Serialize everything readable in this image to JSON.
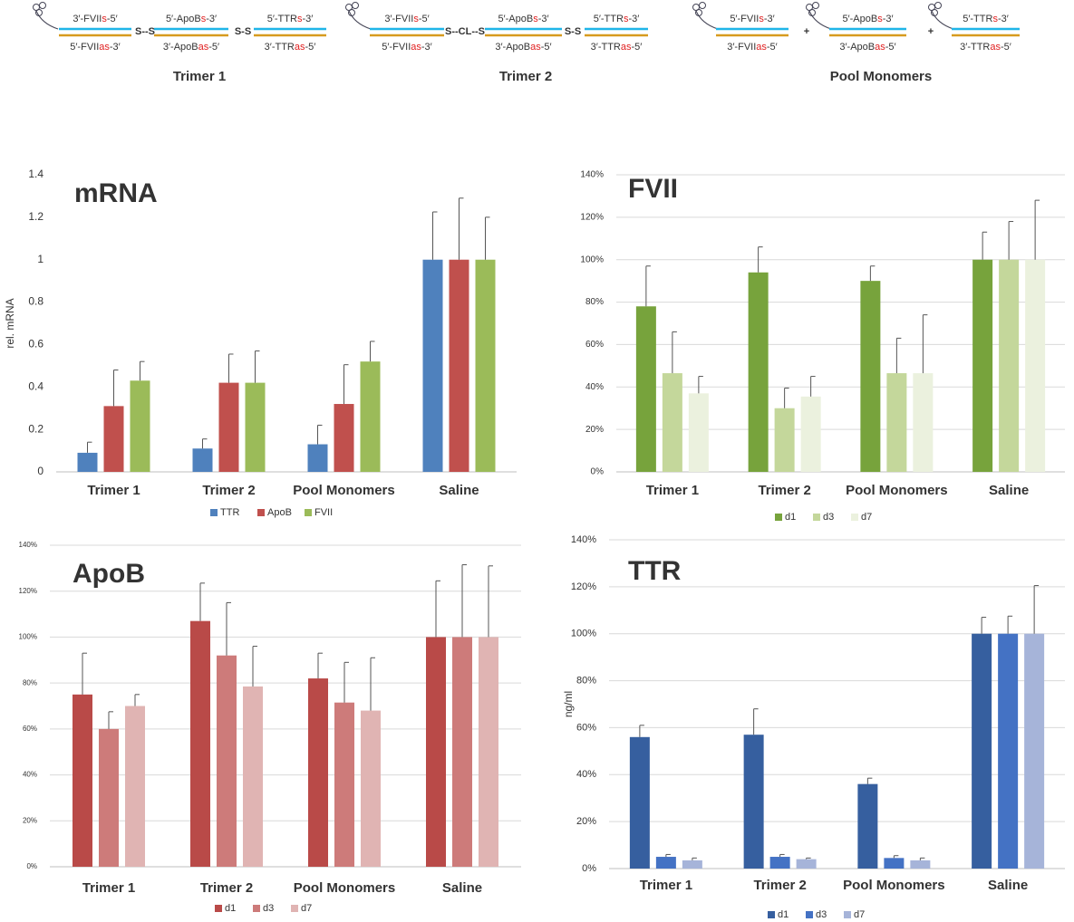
{
  "schematic": [
    {
      "caption": "Trimer 1",
      "strands": [
        {
          "top": {
            "pre": "3′-FVII",
            "mod": "s",
            "post": "-5′"
          },
          "bottom": {
            "pre": "5′-FVII",
            "mod": "as",
            "post": "-3′"
          }
        },
        {
          "top": {
            "pre": "5′-ApoB",
            "mod": "s",
            "post": "-3′"
          },
          "bottom": {
            "pre": "3′-ApoB",
            "mod": "as",
            "post": "-5′"
          }
        },
        {
          "top": {
            "pre": "5′-TTR",
            "mod": "s",
            "post": "-3′"
          },
          "bottom": {
            "pre": "3′-TTR",
            "mod": "as",
            "post": "-5′"
          }
        }
      ],
      "linkers": [
        "S--S",
        "S-S"
      ]
    },
    {
      "caption": "Trimer 2",
      "strands": [
        {
          "top": {
            "pre": "3′-FVII",
            "mod": "s",
            "post": "-5′"
          },
          "bottom": {
            "pre": "5′-FVII",
            "mod": "as",
            "post": "-3′"
          }
        },
        {
          "top": {
            "pre": "5′-ApoB",
            "mod": "s",
            "post": "-3′"
          },
          "bottom": {
            "pre": "3′-ApoB",
            "mod": "as",
            "post": "-5′"
          }
        },
        {
          "top": {
            "pre": "5′-TTR",
            "mod": "s",
            "post": "-3′"
          },
          "bottom": {
            "pre": "3′-TTR",
            "mod": "as",
            "post": "-5′"
          }
        }
      ],
      "linkers": [
        "S--CL--S",
        "S-S"
      ]
    },
    {
      "caption": "Pool Monomers",
      "strands": [
        {
          "top": {
            "pre": "5′-FVII",
            "mod": "s",
            "post": "-3′"
          },
          "bottom": {
            "pre": "3′-FVII",
            "mod": "as",
            "post": "-5′"
          }
        },
        {
          "top": {
            "pre": "5′-ApoB",
            "mod": "s",
            "post": "-3′"
          },
          "bottom": {
            "pre": "3′-ApoB",
            "mod": "as",
            "post": "-5′"
          }
        },
        {
          "top": {
            "pre": "5′-TTR",
            "mod": "s",
            "post": "-3′"
          },
          "bottom": {
            "pre": "3′-TTR",
            "mod": "as",
            "post": "-5′"
          }
        }
      ],
      "linkers": [
        "+",
        "+"
      ]
    }
  ],
  "chart_data": [
    {
      "type": "bar",
      "title": "mRNA",
      "ylabel": "rel. mRNA",
      "categories": [
        "Trimer 1",
        "Trimer 2",
        "Pool Monomers",
        "Saline"
      ],
      "series": [
        {
          "name": "TTR",
          "color": "#4f81bd",
          "values": [
            0.09,
            0.11,
            0.13,
            1
          ],
          "errors": [
            0.05,
            0.045,
            0.09,
            0.225
          ]
        },
        {
          "name": "ApoB",
          "color": "#c0504d",
          "values": [
            0.31,
            0.42,
            0.32,
            1
          ],
          "errors": [
            0.17,
            0.135,
            0.185,
            0.29
          ]
        },
        {
          "name": "FVII",
          "color": "#9bbb59",
          "values": [
            0.43,
            0.42,
            0.52,
            1
          ],
          "errors": [
            0.09,
            0.15,
            0.095,
            0.2
          ]
        }
      ],
      "ylim": [
        0,
        1.4
      ],
      "yticks": [
        0,
        0.2,
        0.4,
        0.6,
        0.8,
        1,
        1.2,
        1.4
      ],
      "grid": false,
      "legend": "bottom"
    },
    {
      "type": "bar",
      "title": "FVII",
      "categories": [
        "Trimer 1",
        "Trimer 2",
        "Pool Monomers",
        "Saline"
      ],
      "series": [
        {
          "name": "d1",
          "color": "#77a33c",
          "values": [
            78,
            94,
            90,
            100
          ],
          "errors": [
            19,
            12,
            7,
            13
          ]
        },
        {
          "name": "d3",
          "color": "#c4d79b",
          "values": [
            46.5,
            30,
            46.5,
            100
          ],
          "errors": [
            19.5,
            9.5,
            16.5,
            18
          ]
        },
        {
          "name": "d7",
          "color": "#ebf1de",
          "values": [
            37,
            35.5,
            46.5,
            100
          ],
          "errors": [
            8,
            9.5,
            27.5,
            28
          ]
        }
      ],
      "ylim": [
        0,
        140
      ],
      "yticks": [
        {
          "value": 0,
          "label": "0%"
        },
        {
          "value": 20,
          "label": "20%"
        },
        {
          "value": 40,
          "label": "40%"
        },
        {
          "value": 60,
          "label": "60%"
        },
        {
          "value": 80,
          "label": "80%"
        },
        {
          "value": 100,
          "label": "100%"
        },
        {
          "value": 120,
          "label": "120%"
        },
        {
          "value": 140,
          "label": "140%"
        }
      ],
      "grid": true,
      "legend": "bottom"
    },
    {
      "type": "bar",
      "title": "ApoB",
      "categories": [
        "Trimer 1",
        "Trimer 2",
        "Pool Monomers",
        "Saline"
      ],
      "series": [
        {
          "name": "d1",
          "color": "#b94a48",
          "values": [
            75,
            107,
            82,
            100
          ],
          "errors": [
            18,
            16.5,
            11,
            24.5
          ]
        },
        {
          "name": "d3",
          "color": "#cd7b7a",
          "values": [
            60,
            92,
            71.5,
            100
          ],
          "errors": [
            7.5,
            23,
            17.5,
            31.5
          ]
        },
        {
          "name": "d7",
          "color": "#e0b4b3",
          "values": [
            70,
            78.5,
            68,
            100
          ],
          "errors": [
            5,
            17.5,
            23,
            31
          ]
        }
      ],
      "ylim": [
        0,
        140
      ],
      "yticks": [
        {
          "value": 0,
          "label": "0%"
        },
        {
          "value": 20,
          "label": "20%"
        },
        {
          "value": 40,
          "label": "40%"
        },
        {
          "value": 60,
          "label": "60%"
        },
        {
          "value": 80,
          "label": "80%"
        },
        {
          "value": 100,
          "label": "100%"
        },
        {
          "value": 120,
          "label": "120%"
        },
        {
          "value": 140,
          "label": "140%"
        }
      ],
      "grid": true,
      "legend": "bottom"
    },
    {
      "type": "bar",
      "title": "TTR",
      "ylabel": "ng/ml",
      "categories": [
        "Trimer 1",
        "Trimer 2",
        "Pool Monomers",
        "Saline"
      ],
      "series": [
        {
          "name": "d1",
          "color": "#365f9f",
          "values": [
            56,
            57,
            36,
            100
          ],
          "errors": [
            5,
            11,
            2.5,
            7
          ]
        },
        {
          "name": "d3",
          "color": "#4472c4",
          "values": [
            5,
            5,
            4.5,
            100
          ],
          "errors": [
            1,
            1,
            1,
            7.5
          ]
        },
        {
          "name": "d7",
          "color": "#a6b4d9",
          "values": [
            3.5,
            4,
            3.5,
            100
          ],
          "errors": [
            1,
            0.5,
            1,
            20.5
          ]
        }
      ],
      "ylim": [
        0,
        140
      ],
      "yticks": [
        {
          "value": 0,
          "label": "0%"
        },
        {
          "value": 20,
          "label": "20%"
        },
        {
          "value": 40,
          "label": "40%"
        },
        {
          "value": 60,
          "label": "60%"
        },
        {
          "value": 80,
          "label": "80%"
        },
        {
          "value": 100,
          "label": "100%"
        },
        {
          "value": 120,
          "label": "120%"
        },
        {
          "value": 140,
          "label": "140%"
        }
      ],
      "grid": true,
      "legend": "bottom"
    }
  ]
}
